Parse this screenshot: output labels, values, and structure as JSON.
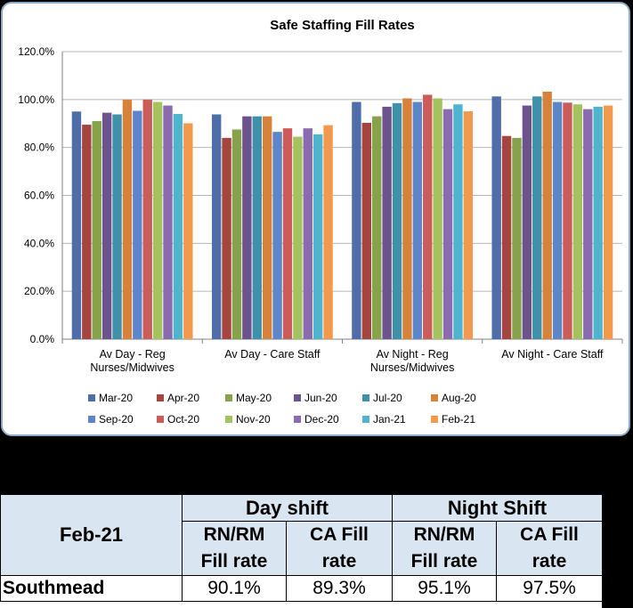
{
  "chart_data": {
    "type": "bar",
    "title": "Safe Staffing Fill Rates",
    "xlabel": "",
    "ylabel": "",
    "ylim": [
      0,
      120
    ],
    "yticks": [
      "0.0%",
      "20.0%",
      "40.0%",
      "60.0%",
      "80.0%",
      "100.0%",
      "120.0%"
    ],
    "grid": true,
    "legend_position": "bottom",
    "categories": [
      [
        "Av Day - Reg",
        "Nurses/Midwives"
      ],
      [
        "Av Day - Care Staff"
      ],
      [
        "Av Night - Reg",
        "Nurses/Midwives"
      ],
      [
        "Av Night - Care Staff"
      ]
    ],
    "series": [
      {
        "name": "Mar-20",
        "color": "#4f6da8",
        "values": [
          95.0,
          93.8,
          99.0,
          101.3
        ]
      },
      {
        "name": "Apr-20",
        "color": "#a64440",
        "values": [
          89.5,
          84.0,
          90.3,
          84.8
        ]
      },
      {
        "name": "May-20",
        "color": "#86a24a",
        "values": [
          91.0,
          87.5,
          93.0,
          84.0
        ]
      },
      {
        "name": "Jun-20",
        "color": "#6c538d",
        "values": [
          94.5,
          93.0,
          97.0,
          97.5
        ]
      },
      {
        "name": "Jul-20",
        "color": "#3f91a9",
        "values": [
          93.8,
          93.0,
          98.5,
          101.3
        ]
      },
      {
        "name": "Aug-20",
        "color": "#d6823a",
        "values": [
          100.0,
          93.0,
          100.5,
          103.3
        ]
      },
      {
        "name": "Sep-20",
        "color": "#5d85c9",
        "values": [
          95.3,
          86.5,
          99.0,
          99.0
        ]
      },
      {
        "name": "Oct-20",
        "color": "#cc5c5a",
        "values": [
          100.0,
          88.0,
          102.0,
          98.7
        ]
      },
      {
        "name": "Nov-20",
        "color": "#a4c35e",
        "values": [
          99.0,
          84.5,
          100.5,
          98.0
        ]
      },
      {
        "name": "Dec-20",
        "color": "#8a6bb0",
        "values": [
          97.5,
          88.0,
          96.0,
          96.0
        ]
      },
      {
        "name": "Jan-21",
        "color": "#4fb5cf",
        "values": [
          94.0,
          85.5,
          98.0,
          97.0
        ]
      },
      {
        "name": "Feb-21",
        "color": "#f3994e",
        "values": [
          90.1,
          89.3,
          95.1,
          97.5
        ]
      }
    ]
  },
  "table": {
    "period": "Feb-21",
    "day_header": "Day shift",
    "night_header": "Night Shift",
    "col1": [
      "RN/RM",
      "Fill rate"
    ],
    "col2": [
      "CA Fill",
      "rate"
    ],
    "col3": [
      "RN/RM",
      "Fill rate"
    ],
    "col4": [
      "CA Fill",
      "rate"
    ],
    "row_label": "Southmead",
    "values": [
      "90.1%",
      "89.3%",
      "95.1%",
      "97.5%"
    ]
  }
}
